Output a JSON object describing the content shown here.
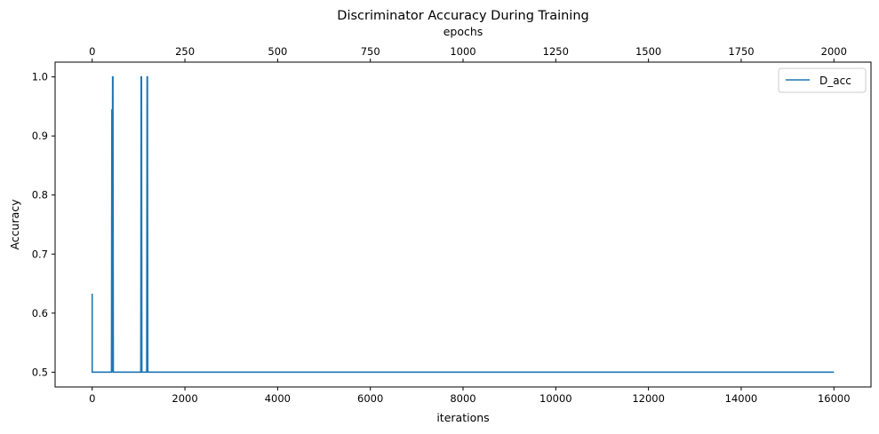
{
  "chart_data": {
    "type": "line",
    "title": "Discriminator Accuracy During Training",
    "xlabel": "iterations",
    "ylabel": "Accuracy",
    "top_xlabel": "epochs",
    "xlim": [
      -800,
      16800
    ],
    "ylim": [
      0.475,
      1.025
    ],
    "top_xlim": [
      -100,
      2100
    ],
    "xticks": [
      0,
      2000,
      4000,
      6000,
      8000,
      10000,
      12000,
      14000,
      16000
    ],
    "yticks": [
      0.5,
      0.6,
      0.7,
      0.8,
      0.9,
      1.0
    ],
    "top_xticks": [
      0,
      250,
      500,
      750,
      1000,
      1250,
      1500,
      1750,
      2000
    ],
    "grid": false,
    "legend_placement": "top-right",
    "series": [
      {
        "name": "D_acc",
        "color": "#1f77b4",
        "x": [
          0,
          0,
          8,
          416,
          424,
          432,
          440,
          448,
          456,
          464,
          1048,
          1056,
          1064,
          1072,
          1080,
          1176,
          1184,
          1192,
          1200,
          1208,
          16000
        ],
        "y": [
          0.633,
          0.5,
          0.5,
          0.5,
          0.945,
          0.5,
          1.0,
          1.0,
          0.5,
          0.5,
          0.5,
          1.0,
          1.0,
          0.5,
          0.5,
          0.5,
          1.0,
          1.0,
          0.5,
          0.5,
          0.5
        ]
      }
    ]
  }
}
